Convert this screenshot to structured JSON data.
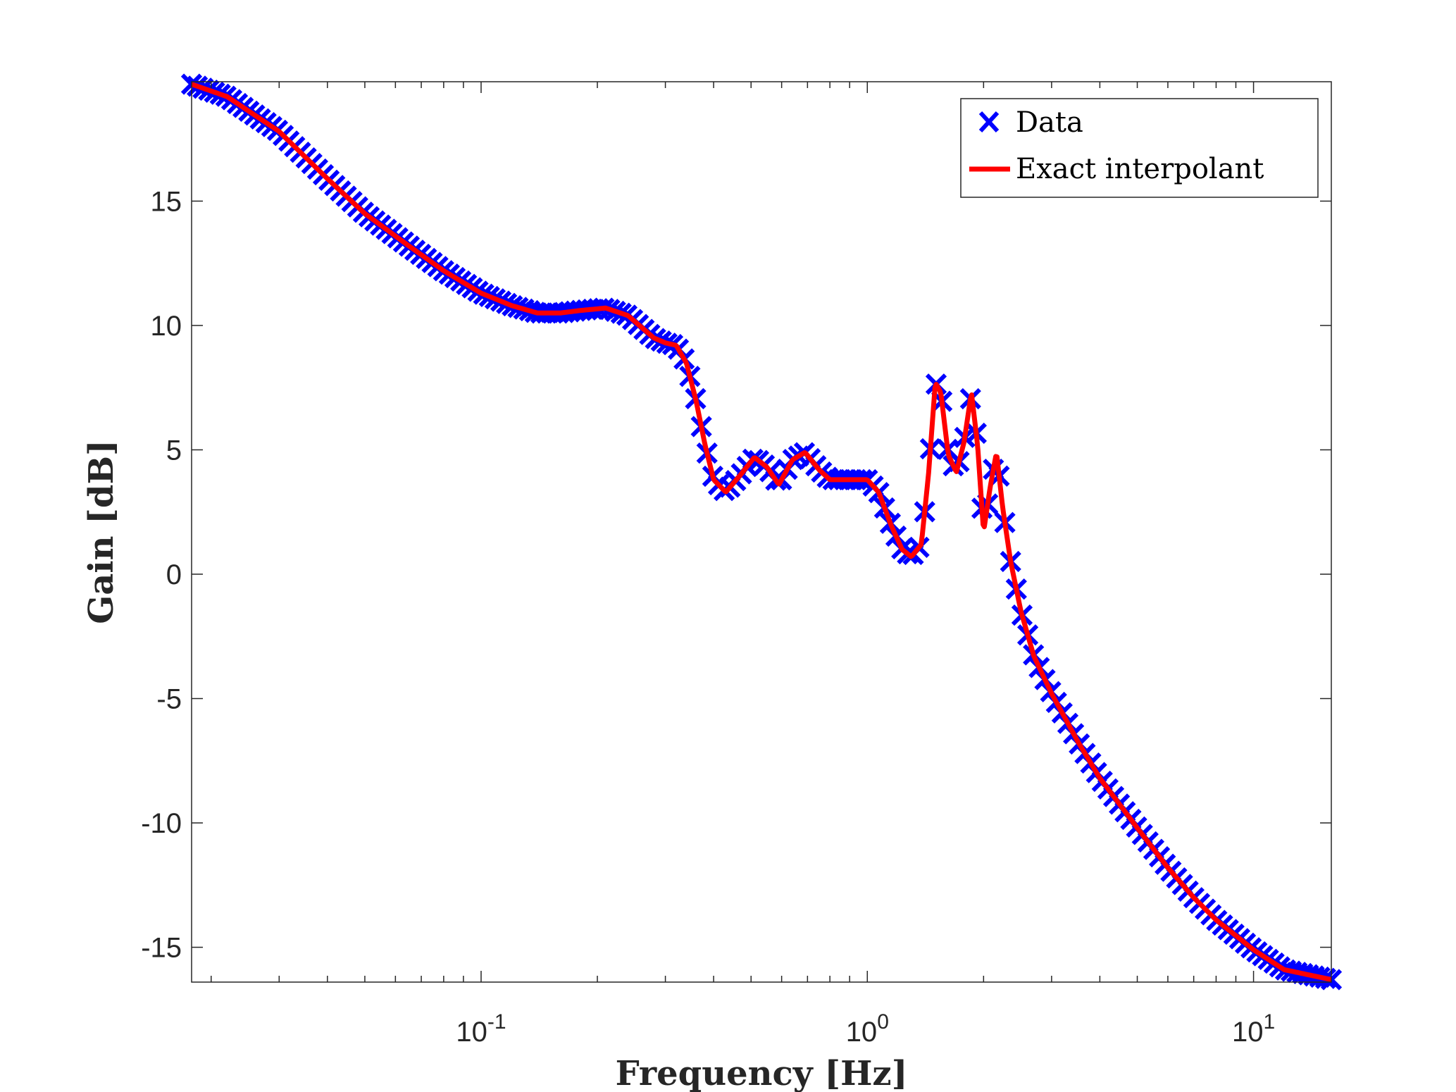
{
  "chart_data": {
    "type": "line",
    "title": "",
    "xlabel": "Frequency [Hz]",
    "ylabel": "Gain [dB]",
    "x_scale": "log",
    "xlim": [
      0.0178,
      15.9
    ],
    "ylim": [
      -16.4,
      19.8
    ],
    "grid": false,
    "legend_position": "top-right",
    "x_ticks": [
      {
        "value": 0.1,
        "base": "10",
        "exp": "-1"
      },
      {
        "value": 1,
        "base": "10",
        "exp": "0"
      },
      {
        "value": 10,
        "base": "10",
        "exp": "1"
      }
    ],
    "y_ticks": [
      {
        "value": 15,
        "label": "15"
      },
      {
        "value": 10,
        "label": "10"
      },
      {
        "value": 5,
        "label": "5"
      },
      {
        "value": 0,
        "label": "0"
      },
      {
        "value": -5,
        "label": "-5"
      },
      {
        "value": -10,
        "label": "-10"
      },
      {
        "value": -15,
        "label": "-15"
      }
    ],
    "series": [
      {
        "name": "Data",
        "style": "markers",
        "marker": "x",
        "color": "#0000ff"
      },
      {
        "name": "Exact interpolant",
        "style": "line",
        "color": "#ff0000"
      }
    ],
    "curve": {
      "x": [
        0.0178,
        0.022,
        0.03,
        0.04,
        0.05,
        0.065,
        0.08,
        0.1,
        0.12,
        0.14,
        0.16,
        0.18,
        0.21,
        0.24,
        0.28,
        0.3,
        0.32,
        0.34,
        0.36,
        0.38,
        0.4,
        0.43,
        0.47,
        0.51,
        0.55,
        0.59,
        0.64,
        0.69,
        0.75,
        0.8,
        0.86,
        0.93,
        1.0,
        1.07,
        1.15,
        1.23,
        1.3,
        1.38,
        1.44,
        1.5,
        1.55,
        1.62,
        1.7,
        1.78,
        1.86,
        1.93,
        2.0,
        2.08,
        2.16,
        2.24,
        2.35,
        2.5,
        2.7,
        3.0,
        3.5,
        4.0,
        5.0,
        6.0,
        7.0,
        8.0,
        10.0,
        12.0,
        15.9
      ],
      "y": [
        19.7,
        19.2,
        17.8,
        15.9,
        14.5,
        13.2,
        12.2,
        11.3,
        10.8,
        10.5,
        10.5,
        10.6,
        10.7,
        10.4,
        9.5,
        9.3,
        9.2,
        8.5,
        7.0,
        5.2,
        3.8,
        3.3,
        4.0,
        4.7,
        4.3,
        3.6,
        4.6,
        4.9,
        4.2,
        3.8,
        3.8,
        3.8,
        3.8,
        3.3,
        2.0,
        1.0,
        0.7,
        1.2,
        4.0,
        7.7,
        7.3,
        4.8,
        4.1,
        5.3,
        7.3,
        5.2,
        1.7,
        3.5,
        4.9,
        2.7,
        0.5,
        -1.5,
        -3.3,
        -4.8,
        -6.7,
        -8.2,
        -10.2,
        -11.8,
        -13.0,
        -13.9,
        -15.1,
        -15.9,
        -16.3
      ]
    }
  }
}
